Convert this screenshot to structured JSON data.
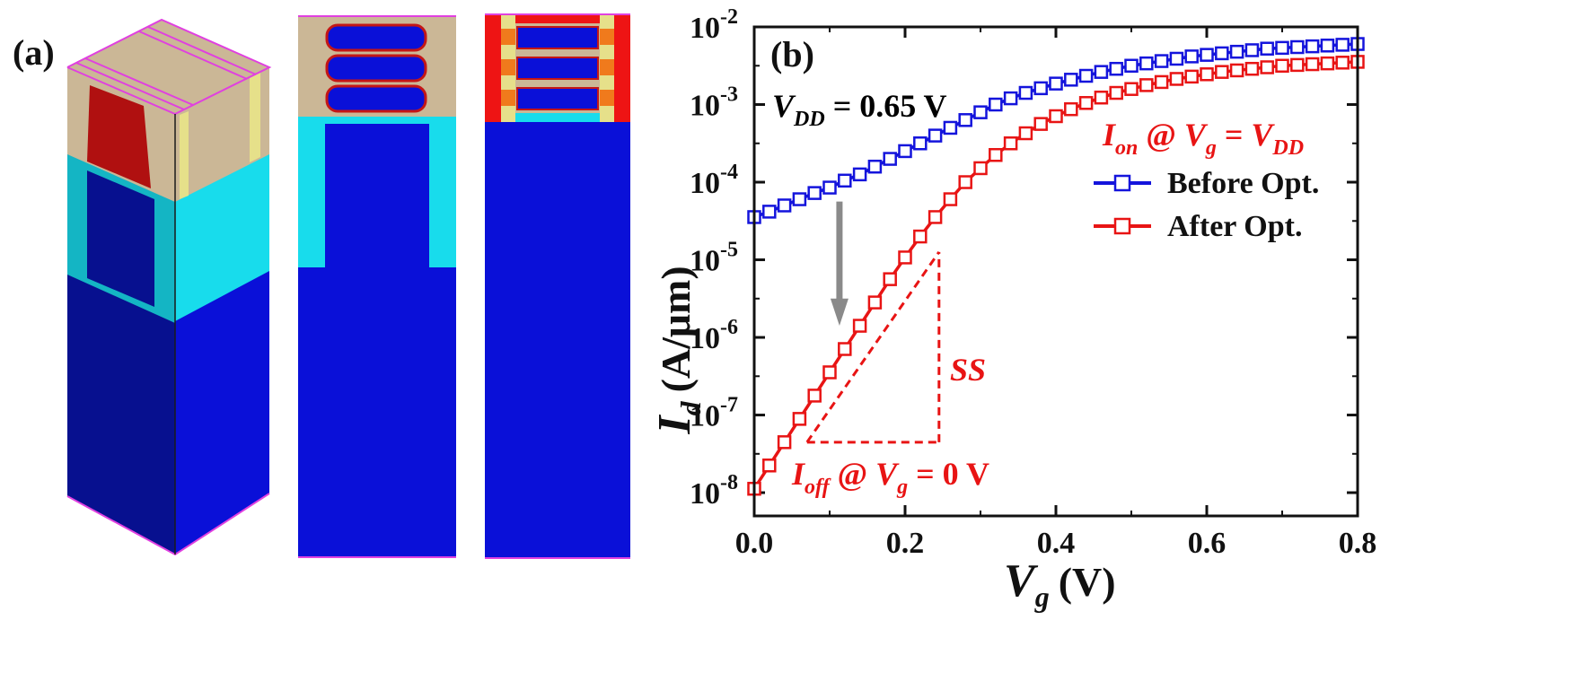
{
  "panel_a": {
    "label": "(a)",
    "colors": {
      "substrate": "#0a10d8",
      "substrate_dark": "#07108f",
      "spacer": "#18dcec",
      "spacer_dark": "#14b5c4",
      "gate": "#cbb796",
      "sd_contact": "#b01010",
      "edge": "#e040e0",
      "inner_spacer": "#e6e08a",
      "channel_orange": "#f07a1c",
      "sd_red": "#ee1414"
    }
  },
  "chart_data": {
    "type": "line",
    "panel_label": "(b)",
    "xlabel": "V",
    "xlabel_sub": "g",
    "xlabel_unit": "(V)",
    "ylabel": "I",
    "ylabel_sub": "d",
    "ylabel_unit": "(A/μm)",
    "xlim": [
      0.0,
      0.8
    ],
    "ylim_log10": [
      -8.3,
      -2.0
    ],
    "yscale": "log",
    "x_ticks": [
      0.0,
      0.2,
      0.4,
      0.6,
      0.8
    ],
    "x_tick_labels": [
      "0.0",
      "0.2",
      "0.4",
      "0.6",
      "0.8"
    ],
    "y_ticks_exp": [
      -8,
      -7,
      -6,
      -5,
      -4,
      -3,
      -2
    ],
    "y_tick_base": "10",
    "y_tick_labels": [
      "-8",
      "-7",
      "-6",
      "-5",
      "-4",
      "-3",
      "-2"
    ],
    "legend_position": "right",
    "series": [
      {
        "name": "Before Opt.",
        "color": "#1414dc",
        "marker": "open-square",
        "x": [
          0.0,
          0.02,
          0.04,
          0.06,
          0.08,
          0.1,
          0.12,
          0.14,
          0.16,
          0.18,
          0.2,
          0.22,
          0.24,
          0.26,
          0.28,
          0.3,
          0.32,
          0.34,
          0.36,
          0.38,
          0.4,
          0.42,
          0.44,
          0.46,
          0.48,
          0.5,
          0.52,
          0.54,
          0.56,
          0.58,
          0.6,
          0.62,
          0.64,
          0.66,
          0.68,
          0.7,
          0.72,
          0.74,
          0.76,
          0.78,
          0.8
        ],
        "log10_y": [
          -4.45,
          -4.38,
          -4.3,
          -4.22,
          -4.14,
          -4.07,
          -3.98,
          -3.9,
          -3.8,
          -3.7,
          -3.6,
          -3.5,
          -3.4,
          -3.3,
          -3.2,
          -3.1,
          -3.0,
          -2.92,
          -2.85,
          -2.79,
          -2.73,
          -2.68,
          -2.63,
          -2.58,
          -2.54,
          -2.5,
          -2.47,
          -2.44,
          -2.41,
          -2.38,
          -2.36,
          -2.34,
          -2.32,
          -2.3,
          -2.28,
          -2.27,
          -2.26,
          -2.25,
          -2.24,
          -2.23,
          -2.22
        ]
      },
      {
        "name": "After Opt.",
        "color": "#e81414",
        "marker": "open-square",
        "x": [
          0.0,
          0.02,
          0.04,
          0.06,
          0.08,
          0.1,
          0.12,
          0.14,
          0.16,
          0.18,
          0.2,
          0.22,
          0.24,
          0.26,
          0.28,
          0.3,
          0.32,
          0.34,
          0.36,
          0.38,
          0.4,
          0.42,
          0.44,
          0.46,
          0.48,
          0.5,
          0.52,
          0.54,
          0.56,
          0.58,
          0.6,
          0.62,
          0.64,
          0.66,
          0.68,
          0.7,
          0.72,
          0.74,
          0.76,
          0.78,
          0.8
        ],
        "log10_y": [
          -7.95,
          -7.65,
          -7.35,
          -7.05,
          -6.75,
          -6.45,
          -6.15,
          -5.85,
          -5.55,
          -5.25,
          -4.97,
          -4.7,
          -4.45,
          -4.22,
          -4.0,
          -3.82,
          -3.65,
          -3.5,
          -3.37,
          -3.25,
          -3.15,
          -3.06,
          -2.98,
          -2.91,
          -2.85,
          -2.8,
          -2.75,
          -2.71,
          -2.67,
          -2.64,
          -2.61,
          -2.58,
          -2.56,
          -2.54,
          -2.52,
          -2.5,
          -2.49,
          -2.48,
          -2.47,
          -2.46,
          -2.45
        ]
      }
    ],
    "annotations": {
      "vdd": {
        "v": "V",
        "sub": "DD",
        "rest": " = 0.65 V",
        "color": "#111111"
      },
      "ion": {
        "main": "I",
        "sub": "on",
        "mid": " @ ",
        "v": "V",
        "vsub": "g",
        "eq": " = ",
        "v2": "V",
        "v2sub": "DD",
        "color": "#e81414"
      },
      "ioff": {
        "main": "I",
        "sub": "off",
        "mid": " @ ",
        "v": "V",
        "vsub": "g",
        "rest": " = 0 V",
        "color": "#e81414"
      },
      "ss": {
        "text": "SS",
        "color": "#e81414"
      },
      "arrow_color": "#8a8a8a"
    }
  }
}
